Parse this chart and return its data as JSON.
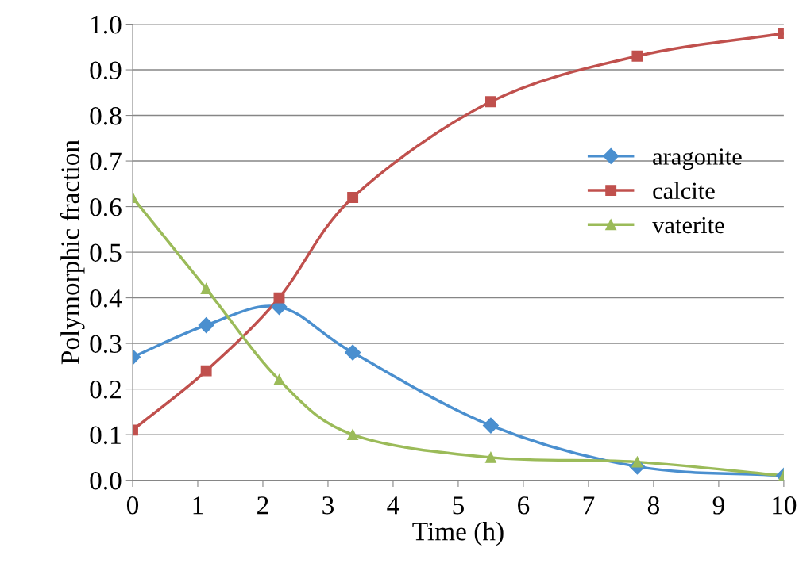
{
  "chart_data": {
    "type": "line",
    "xlabel": "Time (h)",
    "ylabel": "Polymorphic fraction",
    "x": [
      0,
      1.13,
      2.25,
      3.38,
      5.5,
      7.75,
      10
    ],
    "series": [
      {
        "name": "aragonite",
        "color": "#4a8fcf",
        "marker": "diamond",
        "values": [
          0.27,
          0.34,
          0.38,
          0.28,
          0.12,
          0.03,
          0.01
        ]
      },
      {
        "name": "calcite",
        "color": "#c0504d",
        "marker": "square",
        "values": [
          0.11,
          0.24,
          0.4,
          0.62,
          0.83,
          0.93,
          0.98
        ]
      },
      {
        "name": "vaterite",
        "color": "#9bbb59",
        "marker": "triangle",
        "values": [
          0.62,
          0.42,
          0.22,
          0.1,
          0.05,
          0.04,
          0.01
        ]
      }
    ],
    "xlim": [
      0,
      10
    ],
    "xticks": [
      0,
      1,
      2,
      3,
      4,
      5,
      6,
      7,
      8,
      9,
      10
    ],
    "ylim": [
      0,
      1
    ],
    "yticks": [
      {
        "value": 0,
        "label": "0.0"
      },
      {
        "value": 0.1,
        "label": "0.1"
      },
      {
        "value": 0.2,
        "label": "0.2"
      },
      {
        "value": 0.3,
        "label": "0.3"
      },
      {
        "value": 0.4,
        "label": "0.4"
      },
      {
        "value": 0.5,
        "label": "0.5"
      },
      {
        "value": 0.6,
        "label": "0.6"
      },
      {
        "value": 0.7,
        "label": "0.7"
      },
      {
        "value": 0.8,
        "label": "0.8"
      },
      {
        "value": 0.9,
        "label": "0.9"
      },
      {
        "value": 1,
        "label": "1.0"
      }
    ],
    "grid": "y",
    "legend": "right",
    "line_style": "solid"
  }
}
